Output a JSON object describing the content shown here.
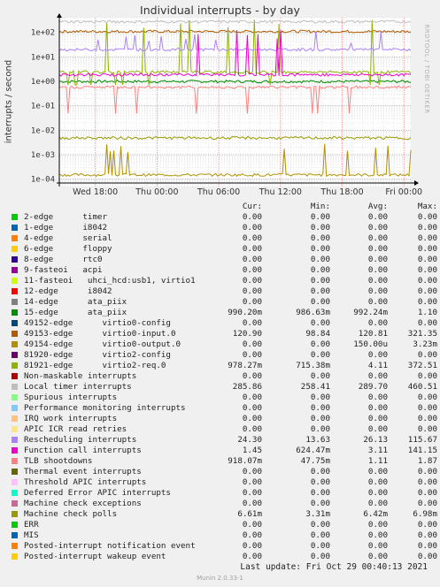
{
  "chart_data": {
    "type": "line",
    "title": "Individual interrupts - by day",
    "ylabel": "interrupts / second",
    "yscale": "log",
    "ylim": [
      5e-05,
      400
    ],
    "yticks": [
      "1e+02",
      "1e+01",
      "1e+00",
      "1e-01",
      "1e-02",
      "1e-03",
      "1e-04"
    ],
    "ytick_values": [
      100,
      10,
      1,
      0.1,
      0.01,
      0.001,
      0.0001
    ],
    "xlim": [
      "2021-10-27 14:30",
      "2021-10-29 00:40"
    ],
    "xticks": [
      "Wed 18:00",
      "Thu 00:00",
      "Thu 06:00",
      "Thu 12:00",
      "Thu 18:00",
      "Fri 00:00"
    ],
    "xtick_values": [
      "2021-10-27 18:00",
      "2021-10-28 00:00",
      "2021-10-28 06:00",
      "2021-10-28 12:00",
      "2021-10-28 18:00",
      "2021-10-29 00:00"
    ],
    "grid": true,
    "columns": [
      "Cur:",
      "Min:",
      "Avg:",
      "Max:"
    ],
    "series": [
      {
        "name": "2-edge      timer",
        "color": "#00cc00",
        "cur": "0.00",
        "min": "0.00",
        "avg": "0.00",
        "max": "0.00"
      },
      {
        "name": "1-edge      i8042",
        "color": "#0066b3",
        "cur": "0.00",
        "min": "0.00",
        "avg": "0.00",
        "max": "0.00"
      },
      {
        "name": "4-edge      serial",
        "color": "#ff8000",
        "cur": "0.00",
        "min": "0.00",
        "avg": "0.00",
        "max": "0.00"
      },
      {
        "name": "6-edge      floppy",
        "color": "#ffcc00",
        "cur": "0.00",
        "min": "0.00",
        "avg": "0.00",
        "max": "0.00"
      },
      {
        "name": "8-edge      rtc0",
        "color": "#330099",
        "cur": "0.00",
        "min": "0.00",
        "avg": "0.00",
        "max": "0.00"
      },
      {
        "name": "9-fasteoi   acpi",
        "color": "#990099",
        "cur": "0.00",
        "min": "0.00",
        "avg": "0.00",
        "max": "0.00"
      },
      {
        "name": "11-fasteoi   uhci_hcd:usb1, virtio1",
        "color": "#ccff00",
        "cur": "0.00",
        "min": "0.00",
        "avg": "0.00",
        "max": "0.00"
      },
      {
        "name": "12-edge      i8042",
        "color": "#ff0000",
        "cur": "0.00",
        "min": "0.00",
        "avg": "0.00",
        "max": "0.00"
      },
      {
        "name": "14-edge      ata_piix",
        "color": "#808080",
        "cur": "0.00",
        "min": "0.00",
        "avg": "0.00",
        "max": "0.00"
      },
      {
        "name": "15-edge      ata_piix",
        "color": "#008f00",
        "cur": "990.20m",
        "min": "986.63m",
        "avg": "992.24m",
        "max": "1.10"
      },
      {
        "name": "49152-edge      virtio0-config",
        "color": "#00487d",
        "cur": "0.00",
        "min": "0.00",
        "avg": "0.00",
        "max": "0.00"
      },
      {
        "name": "49153-edge      virtio0-input.0",
        "color": "#b35a00",
        "cur": "120.90",
        "min": "98.84",
        "avg": "120.81",
        "max": "321.35"
      },
      {
        "name": "49154-edge      virtio0-output.0",
        "color": "#b38f00",
        "cur": "0.00",
        "min": "0.00",
        "avg": "150.00u",
        "max": "3.23m"
      },
      {
        "name": "81920-edge      virtio2-config",
        "color": "#6b006b",
        "cur": "0.00",
        "min": "0.00",
        "avg": "0.00",
        "max": "0.00"
      },
      {
        "name": "81921-edge      virtio2-req.0",
        "color": "#8fb300",
        "cur": "978.27m",
        "min": "715.38m",
        "avg": "4.11",
        "max": "372.51"
      },
      {
        "name": "Non-maskable interrupts",
        "color": "#b30000",
        "cur": "0.00",
        "min": "0.00",
        "avg": "0.00",
        "max": "0.00"
      },
      {
        "name": "Local timer interrupts",
        "color": "#bebebe",
        "cur": "285.86",
        "min": "258.41",
        "avg": "289.70",
        "max": "460.51"
      },
      {
        "name": "Spurious interrupts",
        "color": "#80ff80",
        "cur": "0.00",
        "min": "0.00",
        "avg": "0.00",
        "max": "0.00"
      },
      {
        "name": "Performance monitoring interrupts",
        "color": "#80c9ff",
        "cur": "0.00",
        "min": "0.00",
        "avg": "0.00",
        "max": "0.00"
      },
      {
        "name": "IRQ work interrupts",
        "color": "#ffc080",
        "cur": "0.00",
        "min": "0.00",
        "avg": "0.00",
        "max": "0.00"
      },
      {
        "name": "APIC ICR read retries",
        "color": "#ffe680",
        "cur": "0.00",
        "min": "0.00",
        "avg": "0.00",
        "max": "0.00"
      },
      {
        "name": "Rescheduling interrupts",
        "color": "#aa80ff",
        "cur": "24.30",
        "min": "13.63",
        "avg": "26.13",
        "max": "115.67"
      },
      {
        "name": "Function call interrupts",
        "color": "#ee00cc",
        "cur": "1.45",
        "min": "624.47m",
        "avg": "3.11",
        "max": "141.15"
      },
      {
        "name": "TLB shootdowns",
        "color": "#ff8080",
        "cur": "918.07m",
        "min": "47.75m",
        "avg": "1.11",
        "max": "1.87"
      },
      {
        "name": "Thermal event interrupts",
        "color": "#666600",
        "cur": "0.00",
        "min": "0.00",
        "avg": "0.00",
        "max": "0.00"
      },
      {
        "name": "Threshold APIC interrupts",
        "color": "#ffbfff",
        "cur": "0.00",
        "min": "0.00",
        "avg": "0.00",
        "max": "0.00"
      },
      {
        "name": "Deferred Error APIC interrupts",
        "color": "#00ffcc",
        "cur": "0.00",
        "min": "0.00",
        "avg": "0.00",
        "max": "0.00"
      },
      {
        "name": "Machine check exceptions",
        "color": "#cc6699",
        "cur": "0.00",
        "min": "0.00",
        "avg": "0.00",
        "max": "0.00"
      },
      {
        "name": "Machine check polls",
        "color": "#999900",
        "cur": "6.61m",
        "min": "3.31m",
        "avg": "6.42m",
        "max": "6.98m"
      },
      {
        "name": "ERR",
        "color": "#00cc00",
        "cur": "0.00",
        "min": "0.00",
        "avg": "0.00",
        "max": "0.00"
      },
      {
        "name": "MIS",
        "color": "#0066b3",
        "cur": "0.00",
        "min": "0.00",
        "avg": "0.00",
        "max": "0.00"
      },
      {
        "name": "Posted-interrupt notification event",
        "color": "#ff8000",
        "cur": "0.00",
        "min": "0.00",
        "avg": "0.00",
        "max": "0.00"
      },
      {
        "name": "Posted-interrupt wakeup event",
        "color": "#ffcc00",
        "cur": "0.00",
        "min": "0.00",
        "avg": "0.00",
        "max": "0.00"
      }
    ]
  },
  "footer": {
    "last_update": "Last update:  Fri Oct 29 00:40:13 2021",
    "generator": "Munin 2.0.33-1"
  },
  "watermark": "RRDTOOL / TOBI OETIKER"
}
